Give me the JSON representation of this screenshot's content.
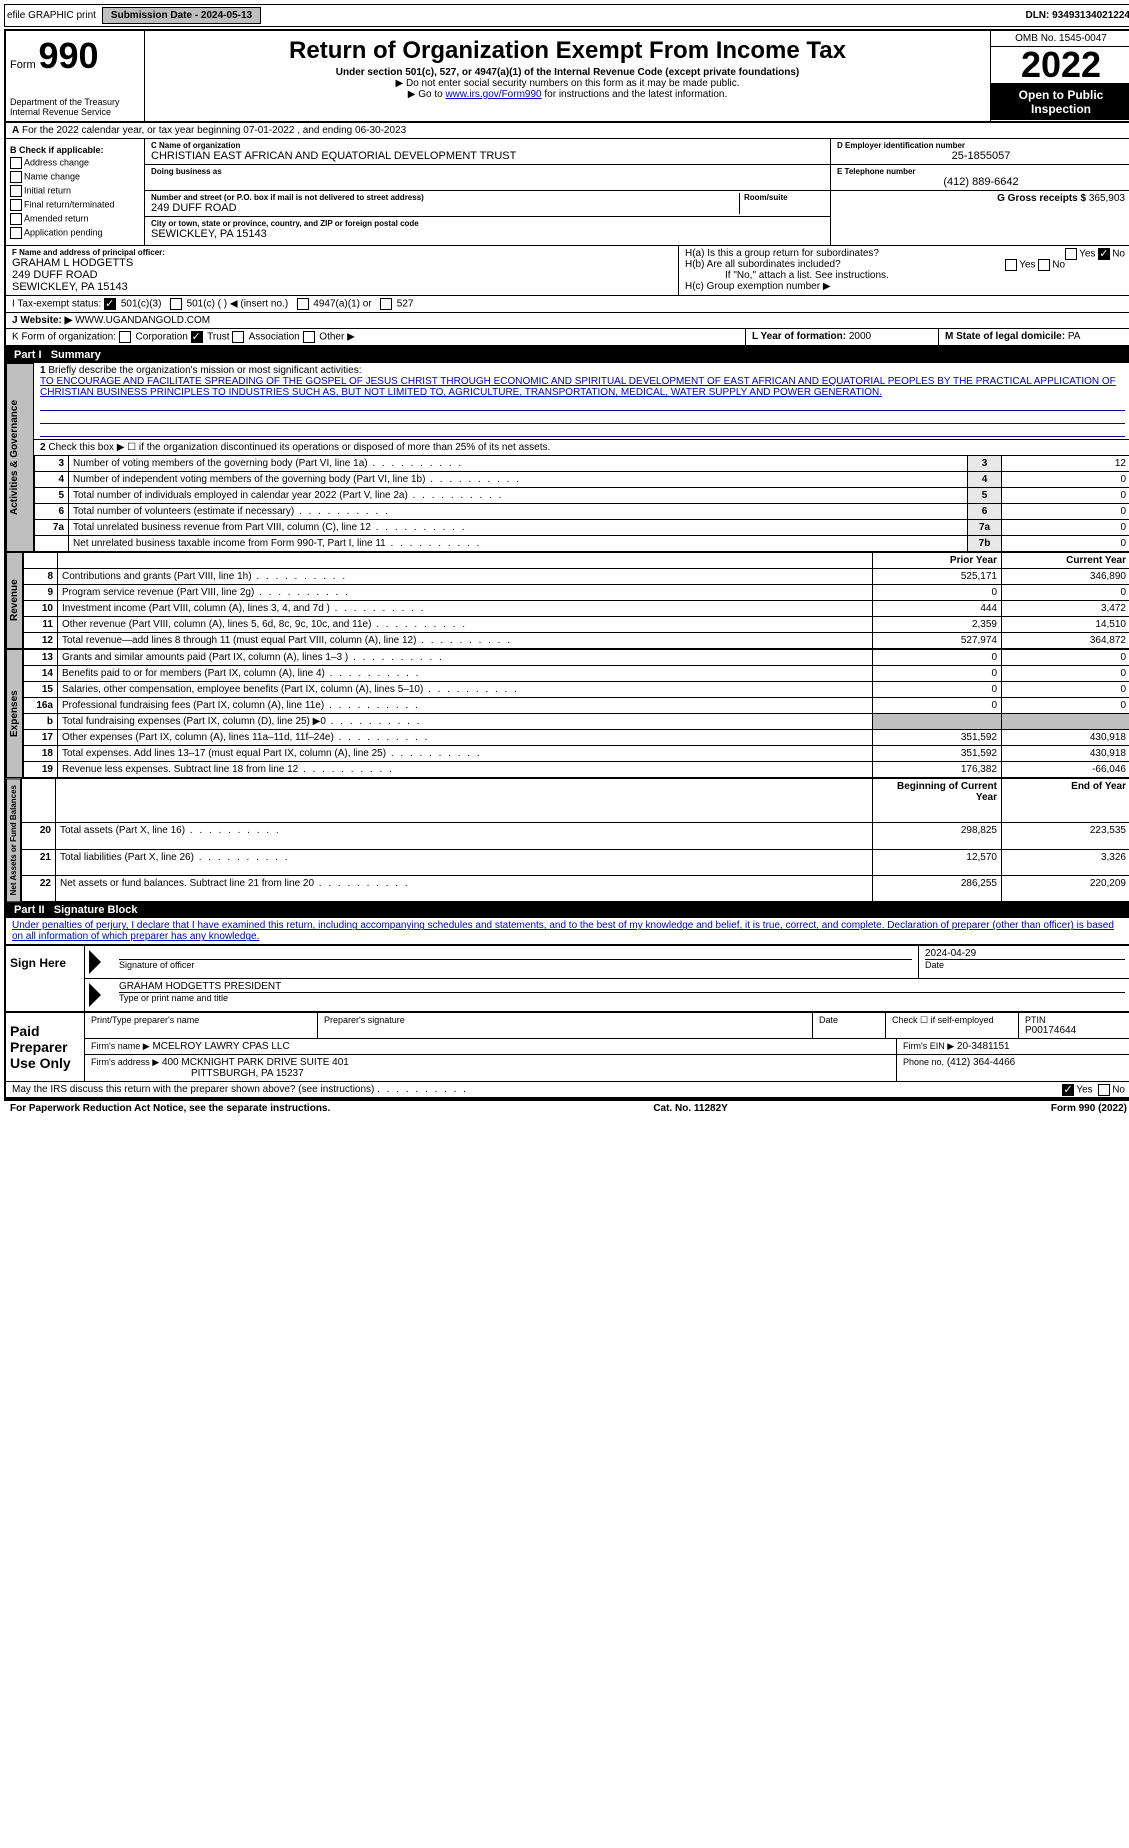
{
  "header_bar": {
    "efile": "efile GRAPHIC print",
    "sub_label": "Submission Date - 2024-05-13",
    "dln": "DLN: 93493134021224"
  },
  "form_header": {
    "form_word": "Form",
    "form_number": "990",
    "dept": "Department of the Treasury",
    "irs": "Internal Revenue Service",
    "title": "Return of Organization Exempt From Income Tax",
    "subtitle": "Under section 501(c), 527, or 4947(a)(1) of the Internal Revenue Code (except private foundations)",
    "warn": "Do not enter social security numbers on this form as it may be made public.",
    "goto_prefix": "Go to ",
    "goto_link": "www.irs.gov/Form990",
    "goto_suffix": " for instructions and the latest information.",
    "omb": "OMB No. 1545-0047",
    "year": "2022",
    "open": "Open to Public Inspection"
  },
  "line_a": "For the 2022 calendar year, or tax year beginning 07-01-2022     , and ending 06-30-2023",
  "box_b": {
    "label": "B Check if applicable:",
    "opts": [
      "Address change",
      "Name change",
      "Initial return",
      "Final return/terminated",
      "Amended return",
      "Application pending"
    ]
  },
  "box_c": {
    "label": "C Name of organization",
    "name": "CHRISTIAN EAST AFRICAN AND EQUATORIAL DEVELOPMENT TRUST",
    "dba_label": "Doing business as",
    "street_label": "Number and street (or P.O. box if mail is not delivered to street address)",
    "room_label": "Room/suite",
    "street": "249 DUFF ROAD",
    "city_label": "City or town, state or province, country, and ZIP or foreign postal code",
    "city": "SEWICKLEY, PA  15143"
  },
  "box_d": {
    "label": "D Employer identification number",
    "val": "25-1855057"
  },
  "box_e": {
    "label": "E Telephone number",
    "val": "(412) 889-6642"
  },
  "box_g": {
    "label": "G Gross receipts $",
    "val": "365,903"
  },
  "box_f": {
    "label": "F Name and address of principal officer:",
    "name": "GRAHAM L HODGETTS",
    "addr1": "249 DUFF ROAD",
    "addr2": "SEWICKLEY, PA  15143"
  },
  "box_h": {
    "ha": "H(a)  Is this a group return for subordinates?",
    "hb": "H(b)  Are all subordinates included?",
    "hnote": "If \"No,\" attach a list. See instructions.",
    "hc": "H(c)  Group exemption number ▶",
    "yes": "Yes",
    "no": "No"
  },
  "box_i": {
    "label": "I   Tax-exempt status:",
    "o1": "501(c)(3)",
    "o2": "501(c) (   ) ◀ (insert no.)",
    "o3": "4947(a)(1) or",
    "o4": "527"
  },
  "box_j": {
    "label": "J   Website: ▶",
    "val": "WWW.UGANDANGOLD.COM"
  },
  "box_k": {
    "label": "K Form of organization:",
    "o1": "Corporation",
    "o2": "Trust",
    "o3": "Association",
    "o4": "Other ▶"
  },
  "box_l": {
    "label": "L Year of formation:",
    "val": "2000"
  },
  "box_m": {
    "label": "M State of legal domicile:",
    "val": "PA"
  },
  "parts": {
    "p1": "Part I",
    "p1t": "Summary",
    "p2": "Part II",
    "p2t": "Signature Block"
  },
  "tabs": {
    "t1": "Activities & Governance",
    "t2": "Revenue",
    "t3": "Expenses",
    "t4": "Net Assets or Fund Balances"
  },
  "summary": {
    "l1": "Briefly describe the organization's mission or most significant activities:",
    "mission": "TO ENCOURAGE AND FACILITATE SPREADING OF THE GOSPEL OF JESUS CHRIST THROUGH ECONOMIC AND SPIRITUAL DEVELOPMENT OF EAST AFRICAN AND EQUATORIAL PEOPLES BY THE PRACTICAL APPLICATION OF CHRISTIAN BUSINESS PRINCIPLES TO INDUSTRIES SUCH AS, BUT NOT LIMITED TO, AGRICULTURE, TRANSPORTATION, MEDICAL, WATER SUPPLY AND POWER GENERATION.",
    "l2": "Check this box ▶ ☐  if the organization discontinued its operations or disposed of more than 25% of its net assets.",
    "rows_ag": [
      {
        "n": "3",
        "d": "Number of voting members of the governing body (Part VI, line 1a)",
        "b": "3",
        "v": "12"
      },
      {
        "n": "4",
        "d": "Number of independent voting members of the governing body (Part VI, line 1b)",
        "b": "4",
        "v": "0"
      },
      {
        "n": "5",
        "d": "Total number of individuals employed in calendar year 2022 (Part V, line 2a)",
        "b": "5",
        "v": "0"
      },
      {
        "n": "6",
        "d": "Total number of volunteers (estimate if necessary)",
        "b": "6",
        "v": "0"
      },
      {
        "n": "7a",
        "d": "Total unrelated business revenue from Part VIII, column (C), line 12",
        "b": "7a",
        "v": "0"
      },
      {
        "n": "",
        "d": "Net unrelated business taxable income from Form 990-T, Part I, line 11",
        "b": "7b",
        "v": "0"
      }
    ],
    "col_py": "Prior Year",
    "col_cy": "Current Year",
    "rows_rev": [
      {
        "n": "8",
        "d": "Contributions and grants (Part VIII, line 1h)",
        "py": "525,171",
        "cy": "346,890"
      },
      {
        "n": "9",
        "d": "Program service revenue (Part VIII, line 2g)",
        "py": "0",
        "cy": "0"
      },
      {
        "n": "10",
        "d": "Investment income (Part VIII, column (A), lines 3, 4, and 7d )",
        "py": "444",
        "cy": "3,472"
      },
      {
        "n": "11",
        "d": "Other revenue (Part VIII, column (A), lines 5, 6d, 8c, 9c, 10c, and 11e)",
        "py": "2,359",
        "cy": "14,510"
      },
      {
        "n": "12",
        "d": "Total revenue—add lines 8 through 11 (must equal Part VIII, column (A), line 12)",
        "py": "527,974",
        "cy": "364,872"
      }
    ],
    "rows_exp": [
      {
        "n": "13",
        "d": "Grants and similar amounts paid (Part IX, column (A), lines 1–3 )",
        "py": "0",
        "cy": "0"
      },
      {
        "n": "14",
        "d": "Benefits paid to or for members (Part IX, column (A), line 4)",
        "py": "0",
        "cy": "0"
      },
      {
        "n": "15",
        "d": "Salaries, other compensation, employee benefits (Part IX, column (A), lines 5–10)",
        "py": "0",
        "cy": "0"
      },
      {
        "n": "16a",
        "d": "Professional fundraising fees (Part IX, column (A), line 11e)",
        "py": "0",
        "cy": "0"
      },
      {
        "n": "b",
        "d": "Total fundraising expenses (Part IX, column (D), line 25) ▶0",
        "py": "",
        "cy": ""
      },
      {
        "n": "17",
        "d": "Other expenses (Part IX, column (A), lines 11a–11d, 11f–24e)",
        "py": "351,592",
        "cy": "430,918"
      },
      {
        "n": "18",
        "d": "Total expenses. Add lines 13–17 (must equal Part IX, column (A), line 25)",
        "py": "351,592",
        "cy": "430,918"
      },
      {
        "n": "19",
        "d": "Revenue less expenses. Subtract line 18 from line 12",
        "py": "176,382",
        "cy": "-66,046"
      }
    ],
    "col_boy": "Beginning of Current Year",
    "col_eoy": "End of Year",
    "rows_net": [
      {
        "n": "20",
        "d": "Total assets (Part X, line 16)",
        "py": "298,825",
        "cy": "223,535"
      },
      {
        "n": "21",
        "d": "Total liabilities (Part X, line 26)",
        "py": "12,570",
        "cy": "3,326"
      },
      {
        "n": "22",
        "d": "Net assets or fund balances. Subtract line 21 from line 20",
        "py": "286,255",
        "cy": "220,209"
      }
    ]
  },
  "sig": {
    "decl": "Under penalties of perjury, I declare that I have examined this return, including accompanying schedules and statements, and to the best of my knowledge and belief, it is true, correct, and complete. Declaration of preparer (other than officer) is based on all information of which preparer has any knowledge.",
    "sign_here": "Sign Here",
    "sig_officer": "Signature of officer",
    "date_lbl": "Date",
    "date_val": "2024-04-29",
    "name_title": "GRAHAM HODGETTS  PRESIDENT",
    "name_lbl": "Type or print name and title",
    "paid": "Paid Preparer Use Only",
    "prep_name_lbl": "Print/Type preparer's name",
    "prep_sig_lbl": "Preparer's signature",
    "check_lbl": "Check ☐ if self-employed",
    "ptin_lbl": "PTIN",
    "ptin": "P00174644",
    "firm_name_lbl": "Firm's name    ▶",
    "firm_name": "MCELROY LAWRY CPAS LLC",
    "firm_ein_lbl": "Firm's EIN ▶",
    "firm_ein": "20-3481151",
    "firm_addr_lbl": "Firm's address ▶",
    "firm_addr": "400 MCKNIGHT PARK DRIVE SUITE 401",
    "firm_city": "PITTSBURGH, PA  15237",
    "phone_lbl": "Phone no.",
    "phone": "(412) 364-4466",
    "discuss": "May the IRS discuss this return with the preparer shown above? (see instructions)"
  },
  "footer": {
    "pra": "For Paperwork Reduction Act Notice, see the separate instructions.",
    "cat": "Cat. No. 11282Y",
    "form": "Form 990 (2022)"
  }
}
